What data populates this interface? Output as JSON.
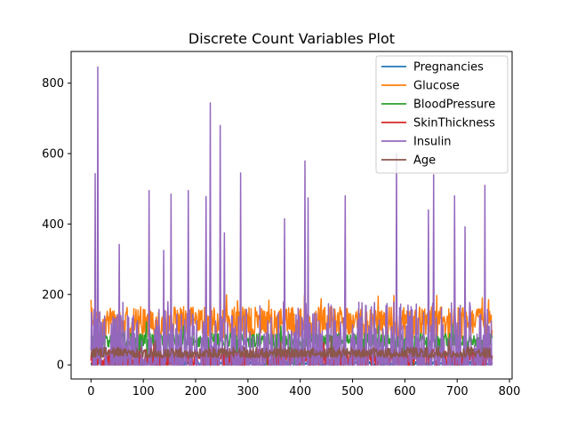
{
  "chart_data": {
    "type": "line",
    "title": "Discrete Count Variables Plot",
    "xlabel": "",
    "ylabel": "",
    "xlim": [
      -38,
      805
    ],
    "ylim": [
      -40,
      890
    ],
    "x_ticks": [
      0,
      100,
      200,
      300,
      400,
      500,
      600,
      700,
      800
    ],
    "y_ticks": [
      0,
      200,
      400,
      600,
      800
    ],
    "grid": false,
    "legend_position": "top-right",
    "n_points": 768,
    "series": [
      {
        "name": "Pregnancies",
        "color": "#1f77b4",
        "typical_range": [
          0,
          17
        ],
        "peaks": [
          [
            88,
            17
          ],
          [
            159,
            15
          ],
          [
            298,
            14
          ],
          [
            455,
            14
          ],
          [
            518,
            13
          ],
          [
            635,
            13
          ],
          [
            691,
            13
          ]
        ]
      },
      {
        "name": "Glucose",
        "color": "#ff7f0e",
        "typical_range": [
          75,
          165
        ],
        "peaks": [
          [
            0,
            185
          ],
          [
            8,
            183
          ],
          [
            159,
            163
          ],
          [
            228,
            197
          ],
          [
            259,
            199
          ],
          [
            280,
            182
          ],
          [
            340,
            184
          ],
          [
            408,
            197
          ],
          [
            440,
            188
          ],
          [
            549,
            195
          ],
          [
            579,
            197
          ],
          [
            661,
            197
          ],
          [
            748,
            190
          ],
          [
            760,
            185
          ]
        ]
      },
      {
        "name": "BloodPressure",
        "color": "#2ca02c",
        "typical_range": [
          50,
          90
        ],
        "peaks": [
          [
            43,
            110
          ],
          [
            106,
            122
          ],
          [
            177,
            110
          ],
          [
            363,
            110
          ],
          [
            549,
            110
          ],
          [
            691,
            114
          ]
        ]
      },
      {
        "name": "SkinThickness",
        "color": "#d62728",
        "typical_range": [
          0,
          45
        ],
        "peaks": [
          [
            57,
            60
          ],
          [
            120,
            60
          ],
          [
            445,
            63
          ],
          [
            579,
            99
          ]
        ]
      },
      {
        "name": "Insulin",
        "color": "#9467bd",
        "typical_range": [
          0,
          180
        ],
        "peaks": [
          [
            8,
            543
          ],
          [
            13,
            846
          ],
          [
            54,
            342
          ],
          [
            111,
            495
          ],
          [
            139,
            325
          ],
          [
            153,
            485
          ],
          [
            186,
            495
          ],
          [
            220,
            478
          ],
          [
            228,
            744
          ],
          [
            247,
            680
          ],
          [
            255,
            375
          ],
          [
            286,
            545
          ],
          [
            370,
            415
          ],
          [
            409,
            579
          ],
          [
            415,
            474
          ],
          [
            486,
            480
          ],
          [
            584,
            600
          ],
          [
            645,
            440
          ],
          [
            655,
            540
          ],
          [
            695,
            480
          ],
          [
            715,
            392
          ],
          [
            753,
            510
          ]
        ]
      },
      {
        "name": "Age",
        "color": "#8c564b",
        "typical_range": [
          21,
          50
        ],
        "peaks": [
          [
            123,
            69
          ],
          [
            363,
            67
          ],
          [
            459,
            81
          ],
          [
            684,
            70
          ]
        ]
      }
    ]
  }
}
